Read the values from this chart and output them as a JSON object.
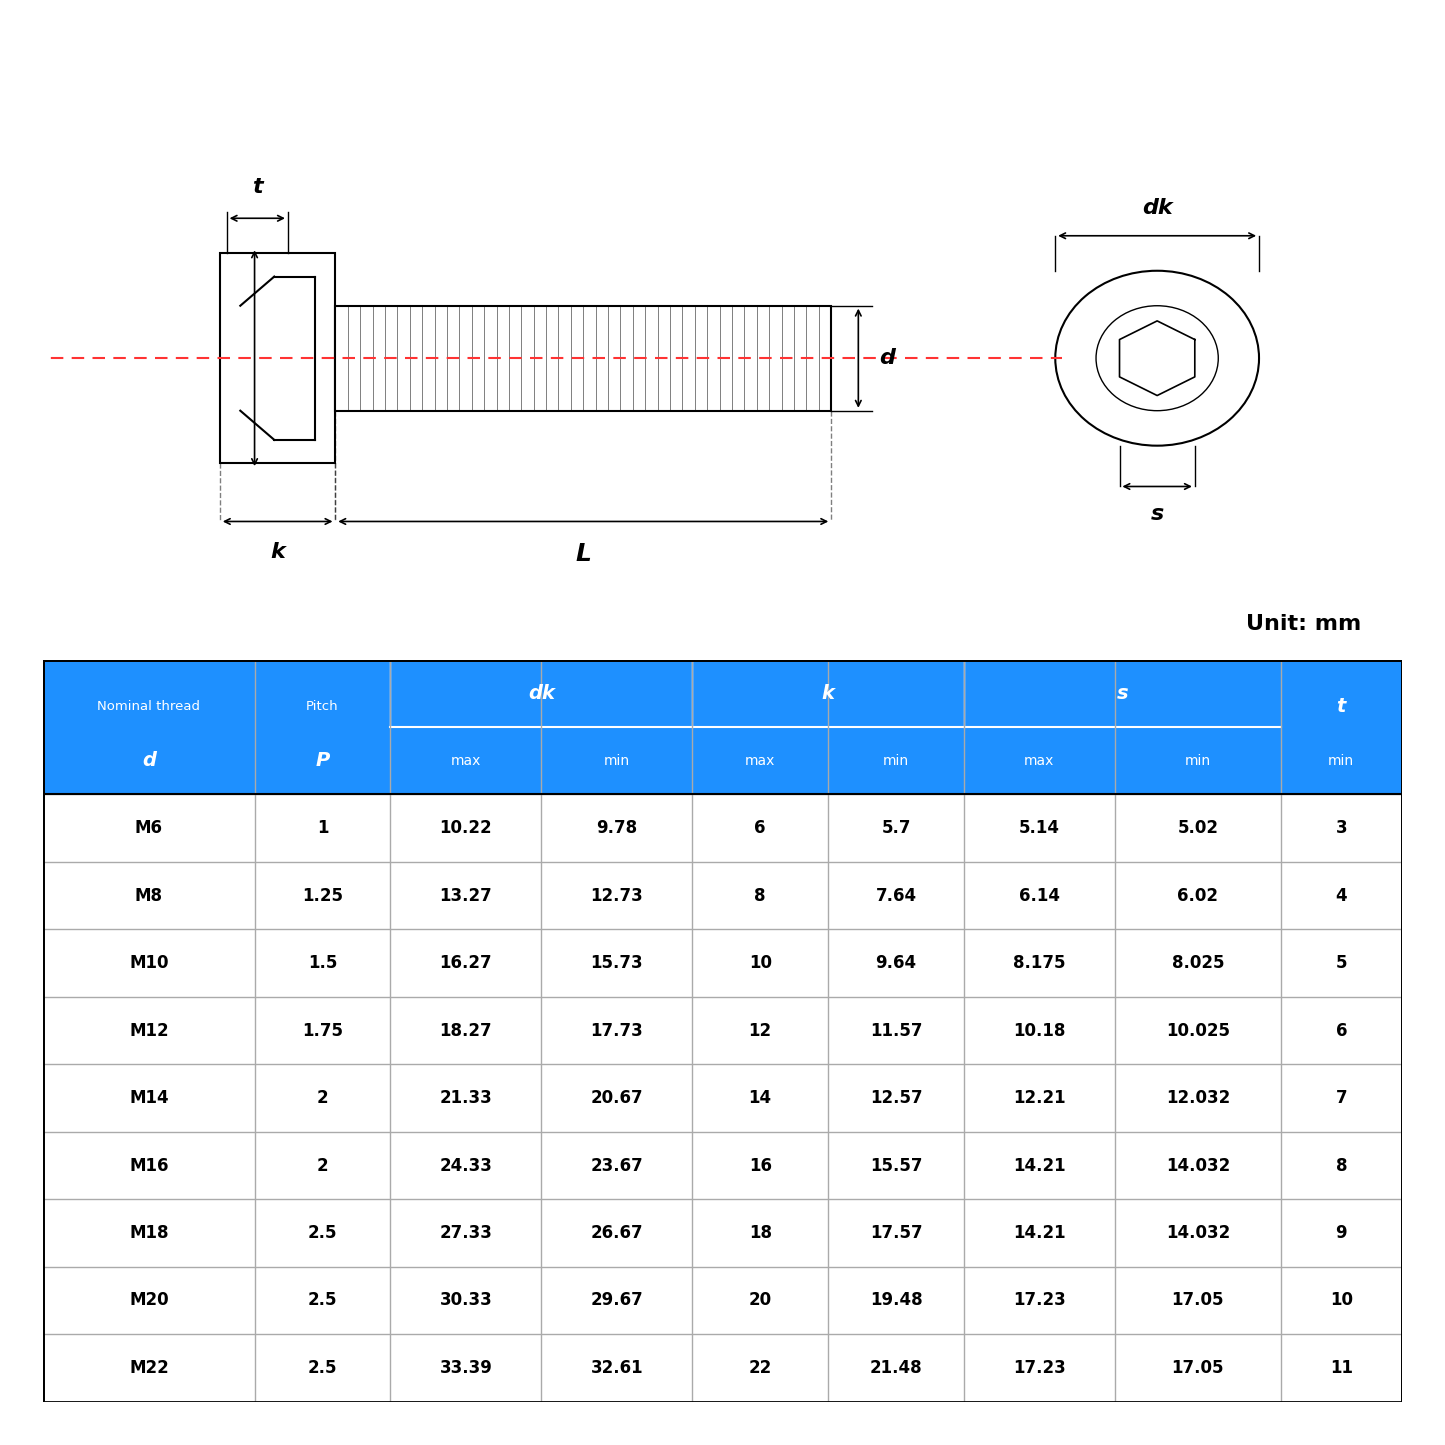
{
  "unit_label": "Unit: mm",
  "header_row1": [
    "Nominal thread",
    "Pitch",
    "dk",
    "",
    "k",
    "",
    "s",
    "",
    "t"
  ],
  "header_row2": [
    "d",
    "P",
    "max",
    "min",
    "max",
    "min",
    "max",
    "min",
    "min"
  ],
  "col_spans": {
    "dk": [
      2,
      3
    ],
    "k": [
      4,
      5
    ],
    "s": [
      6,
      7
    ]
  },
  "table_data": [
    [
      "M6",
      "1",
      "10.22",
      "9.78",
      "6",
      "5.7",
      "5.14",
      "5.02",
      "3"
    ],
    [
      "M8",
      "1.25",
      "13.27",
      "12.73",
      "8",
      "7.64",
      "6.14",
      "6.02",
      "4"
    ],
    [
      "M10",
      "1.5",
      "16.27",
      "15.73",
      "10",
      "9.64",
      "8.175",
      "8.025",
      "5"
    ],
    [
      "M12",
      "1.75",
      "18.27",
      "17.73",
      "12",
      "11.57",
      "10.18",
      "10.025",
      "6"
    ],
    [
      "M14",
      "2",
      "21.33",
      "20.67",
      "14",
      "12.57",
      "12.21",
      "12.032",
      "7"
    ],
    [
      "M16",
      "2",
      "24.33",
      "23.67",
      "16",
      "15.57",
      "14.21",
      "14.032",
      "8"
    ],
    [
      "M18",
      "2.5",
      "27.33",
      "26.67",
      "18",
      "17.57",
      "14.21",
      "14.032",
      "9"
    ],
    [
      "M20",
      "2.5",
      "30.33",
      "29.67",
      "20",
      "19.48",
      "17.23",
      "17.05",
      "10"
    ],
    [
      "M22",
      "2.5",
      "33.39",
      "32.61",
      "22",
      "21.48",
      "17.23",
      "17.05",
      "11"
    ]
  ],
  "header_bg": "#1E90FF",
  "header_text_color": "#FFFFFF",
  "row_bg_odd": "#FFFFFF",
  "row_bg_even": "#FFFFFF",
  "grid_color": "#AAAAAA",
  "text_color": "#000000",
  "col_widths": [
    1.4,
    0.9,
    1.0,
    1.0,
    0.9,
    0.9,
    1.0,
    1.1,
    0.8
  ],
  "diagram_bg": "#FFFFFF",
  "red_line_color": "#FF3333",
  "bolt_color": "#333333"
}
